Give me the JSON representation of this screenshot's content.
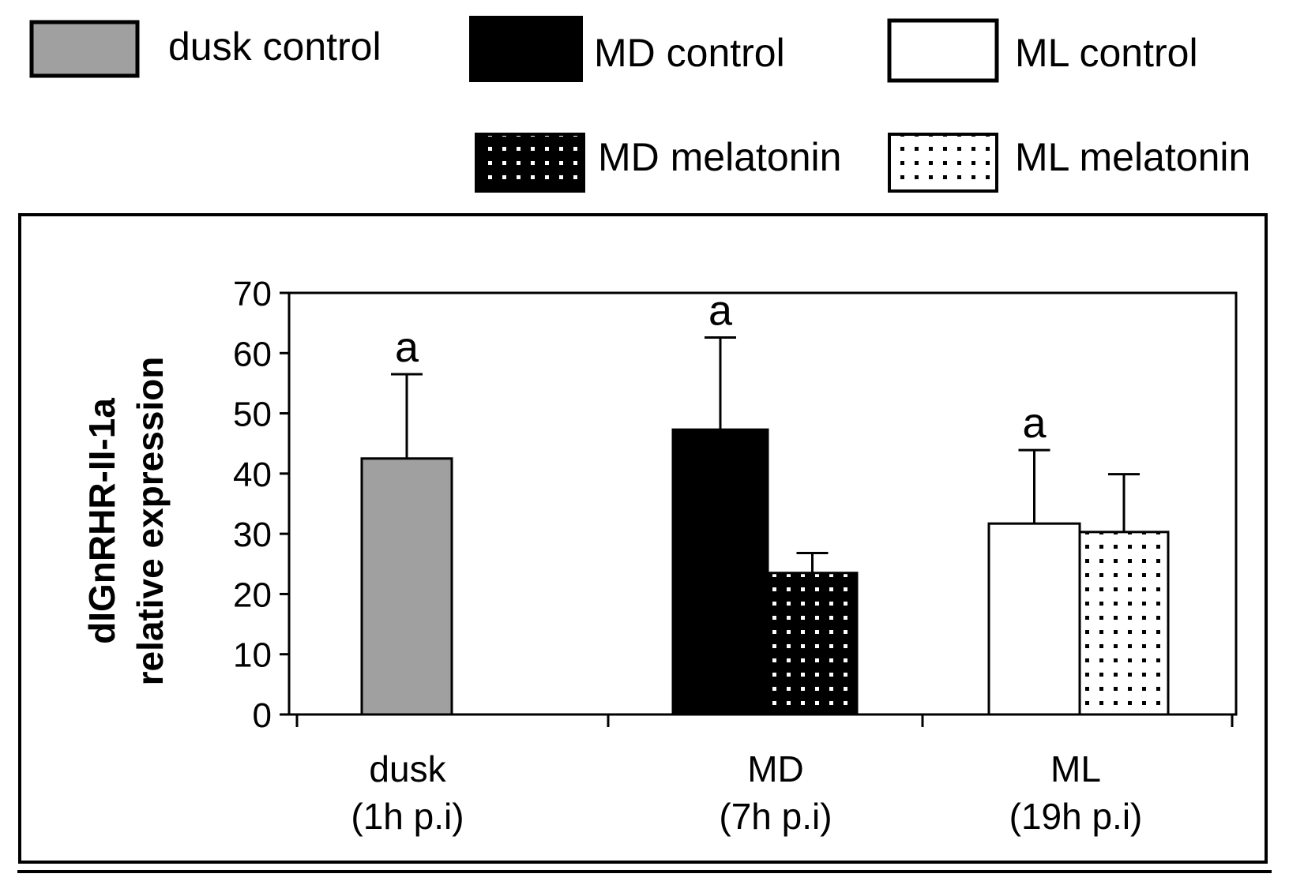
{
  "chart_data": {
    "type": "bar",
    "title": "",
    "ylabel": [
      "dIGnRHR-II-1a",
      "relative expression"
    ],
    "xlabel": "",
    "ylim": [
      0,
      70
    ],
    "yticks": [
      0,
      10,
      20,
      30,
      40,
      50,
      60,
      70
    ],
    "groups": [
      {
        "label": [
          "dusk",
          "(1h p.i)"
        ],
        "bars": [
          {
            "series": "dusk control",
            "value": 42.5,
            "error": 14,
            "letter": "a"
          }
        ]
      },
      {
        "label": [
          "MD",
          "(7h p.i)"
        ],
        "bars": [
          {
            "series": "MD control",
            "value": 47.3,
            "error": 15.3,
            "letter": "a"
          },
          {
            "series": "MD melatonin",
            "value": 23.5,
            "error": 3.3,
            "letter": ""
          }
        ]
      },
      {
        "label": [
          "ML",
          "(19h p.i)"
        ],
        "bars": [
          {
            "series": "ML control",
            "value": 31.7,
            "error": 12.2,
            "letter": "a"
          },
          {
            "series": "ML melatonin",
            "value": 30.3,
            "error": 9.6,
            "letter": ""
          }
        ]
      }
    ],
    "legend": [
      {
        "name": "dusk control",
        "fill": "#a0a0a0",
        "pattern": "solid"
      },
      {
        "name": "MD control",
        "fill": "#000000",
        "pattern": "solid"
      },
      {
        "name": "ML control",
        "fill": "#ffffff",
        "pattern": "solid"
      },
      {
        "name": "MD melatonin",
        "fill": "#000000",
        "pattern": "dots-white"
      },
      {
        "name": "ML melatonin",
        "fill": "#ffffff",
        "pattern": "dots-black"
      }
    ]
  }
}
